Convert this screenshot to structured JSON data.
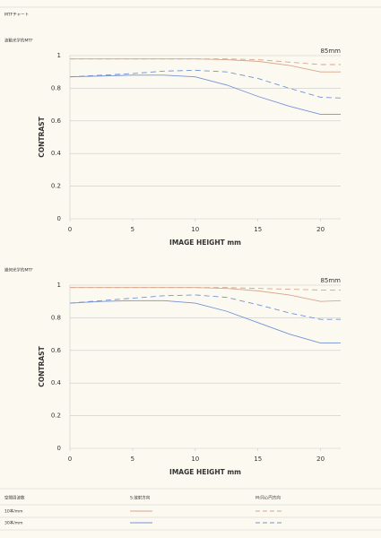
{
  "header": {
    "title": "MTFチャート"
  },
  "chart_data": [
    {
      "type": "line",
      "subtitle": "波動光学的MTF",
      "annotation": "85mm",
      "x_label": "IMAGE HEIGHT  mm",
      "y_label": "CONTRAST",
      "x": [
        0,
        2.5,
        5,
        7.5,
        10,
        12.5,
        15,
        17.5,
        20,
        21.6
      ],
      "xlim": [
        0,
        21.6
      ],
      "ylim": [
        0,
        1
      ],
      "xticks": [
        0,
        5,
        10,
        15,
        20
      ],
      "yticks": [
        0,
        0.2,
        0.4,
        0.6,
        0.8,
        1
      ],
      "grid": true,
      "series": [
        {
          "color": "#d8a48c",
          "dashed": false,
          "values": [
            0.98,
            0.98,
            0.98,
            0.98,
            0.98,
            0.975,
            0.965,
            0.94,
            0.9,
            0.9
          ]
        },
        {
          "color": "#d8a48c",
          "dashed": true,
          "values": [
            0.98,
            0.98,
            0.98,
            0.98,
            0.98,
            0.98,
            0.975,
            0.96,
            0.945,
            0.945
          ]
        },
        {
          "color": "#7492d6",
          "dashed": false,
          "values": [
            0.87,
            0.875,
            0.88,
            0.88,
            0.87,
            0.82,
            0.75,
            0.69,
            0.64,
            0.64
          ]
        },
        {
          "color": "#7492d6",
          "dashed": true,
          "values": [
            0.87,
            0.88,
            0.89,
            0.905,
            0.91,
            0.9,
            0.86,
            0.8,
            0.745,
            0.74
          ]
        }
      ]
    },
    {
      "type": "line",
      "subtitle": "幾何光学的MTF",
      "annotation": "85mm",
      "x_label": "IMAGE HEIGHT  mm",
      "y_label": "CONTRAST",
      "x": [
        0,
        2.5,
        5,
        7.5,
        10,
        12.5,
        15,
        17.5,
        20,
        21.6
      ],
      "xlim": [
        0,
        21.6
      ],
      "ylim": [
        0,
        1
      ],
      "xticks": [
        0,
        5,
        10,
        15,
        20
      ],
      "yticks": [
        0,
        0.2,
        0.4,
        0.6,
        0.8,
        1
      ],
      "grid": true,
      "series": [
        {
          "color": "#d8a48c",
          "dashed": false,
          "values": [
            0.985,
            0.985,
            0.985,
            0.985,
            0.985,
            0.98,
            0.965,
            0.94,
            0.9,
            0.905
          ]
        },
        {
          "color": "#d8a48c",
          "dashed": true,
          "values": [
            0.985,
            0.985,
            0.985,
            0.985,
            0.985,
            0.985,
            0.98,
            0.975,
            0.97,
            0.97
          ]
        },
        {
          "color": "#7492d6",
          "dashed": false,
          "values": [
            0.89,
            0.9,
            0.905,
            0.905,
            0.89,
            0.84,
            0.77,
            0.7,
            0.645,
            0.645
          ]
        },
        {
          "color": "#7492d6",
          "dashed": true,
          "values": [
            0.89,
            0.905,
            0.92,
            0.935,
            0.94,
            0.925,
            0.88,
            0.83,
            0.79,
            0.79
          ]
        }
      ]
    }
  ],
  "legend_table": {
    "header": [
      "空間周波数",
      "S:放射方向",
      "M:同心円方向"
    ],
    "rows": [
      "10本/mm",
      "30本/mm"
    ]
  }
}
